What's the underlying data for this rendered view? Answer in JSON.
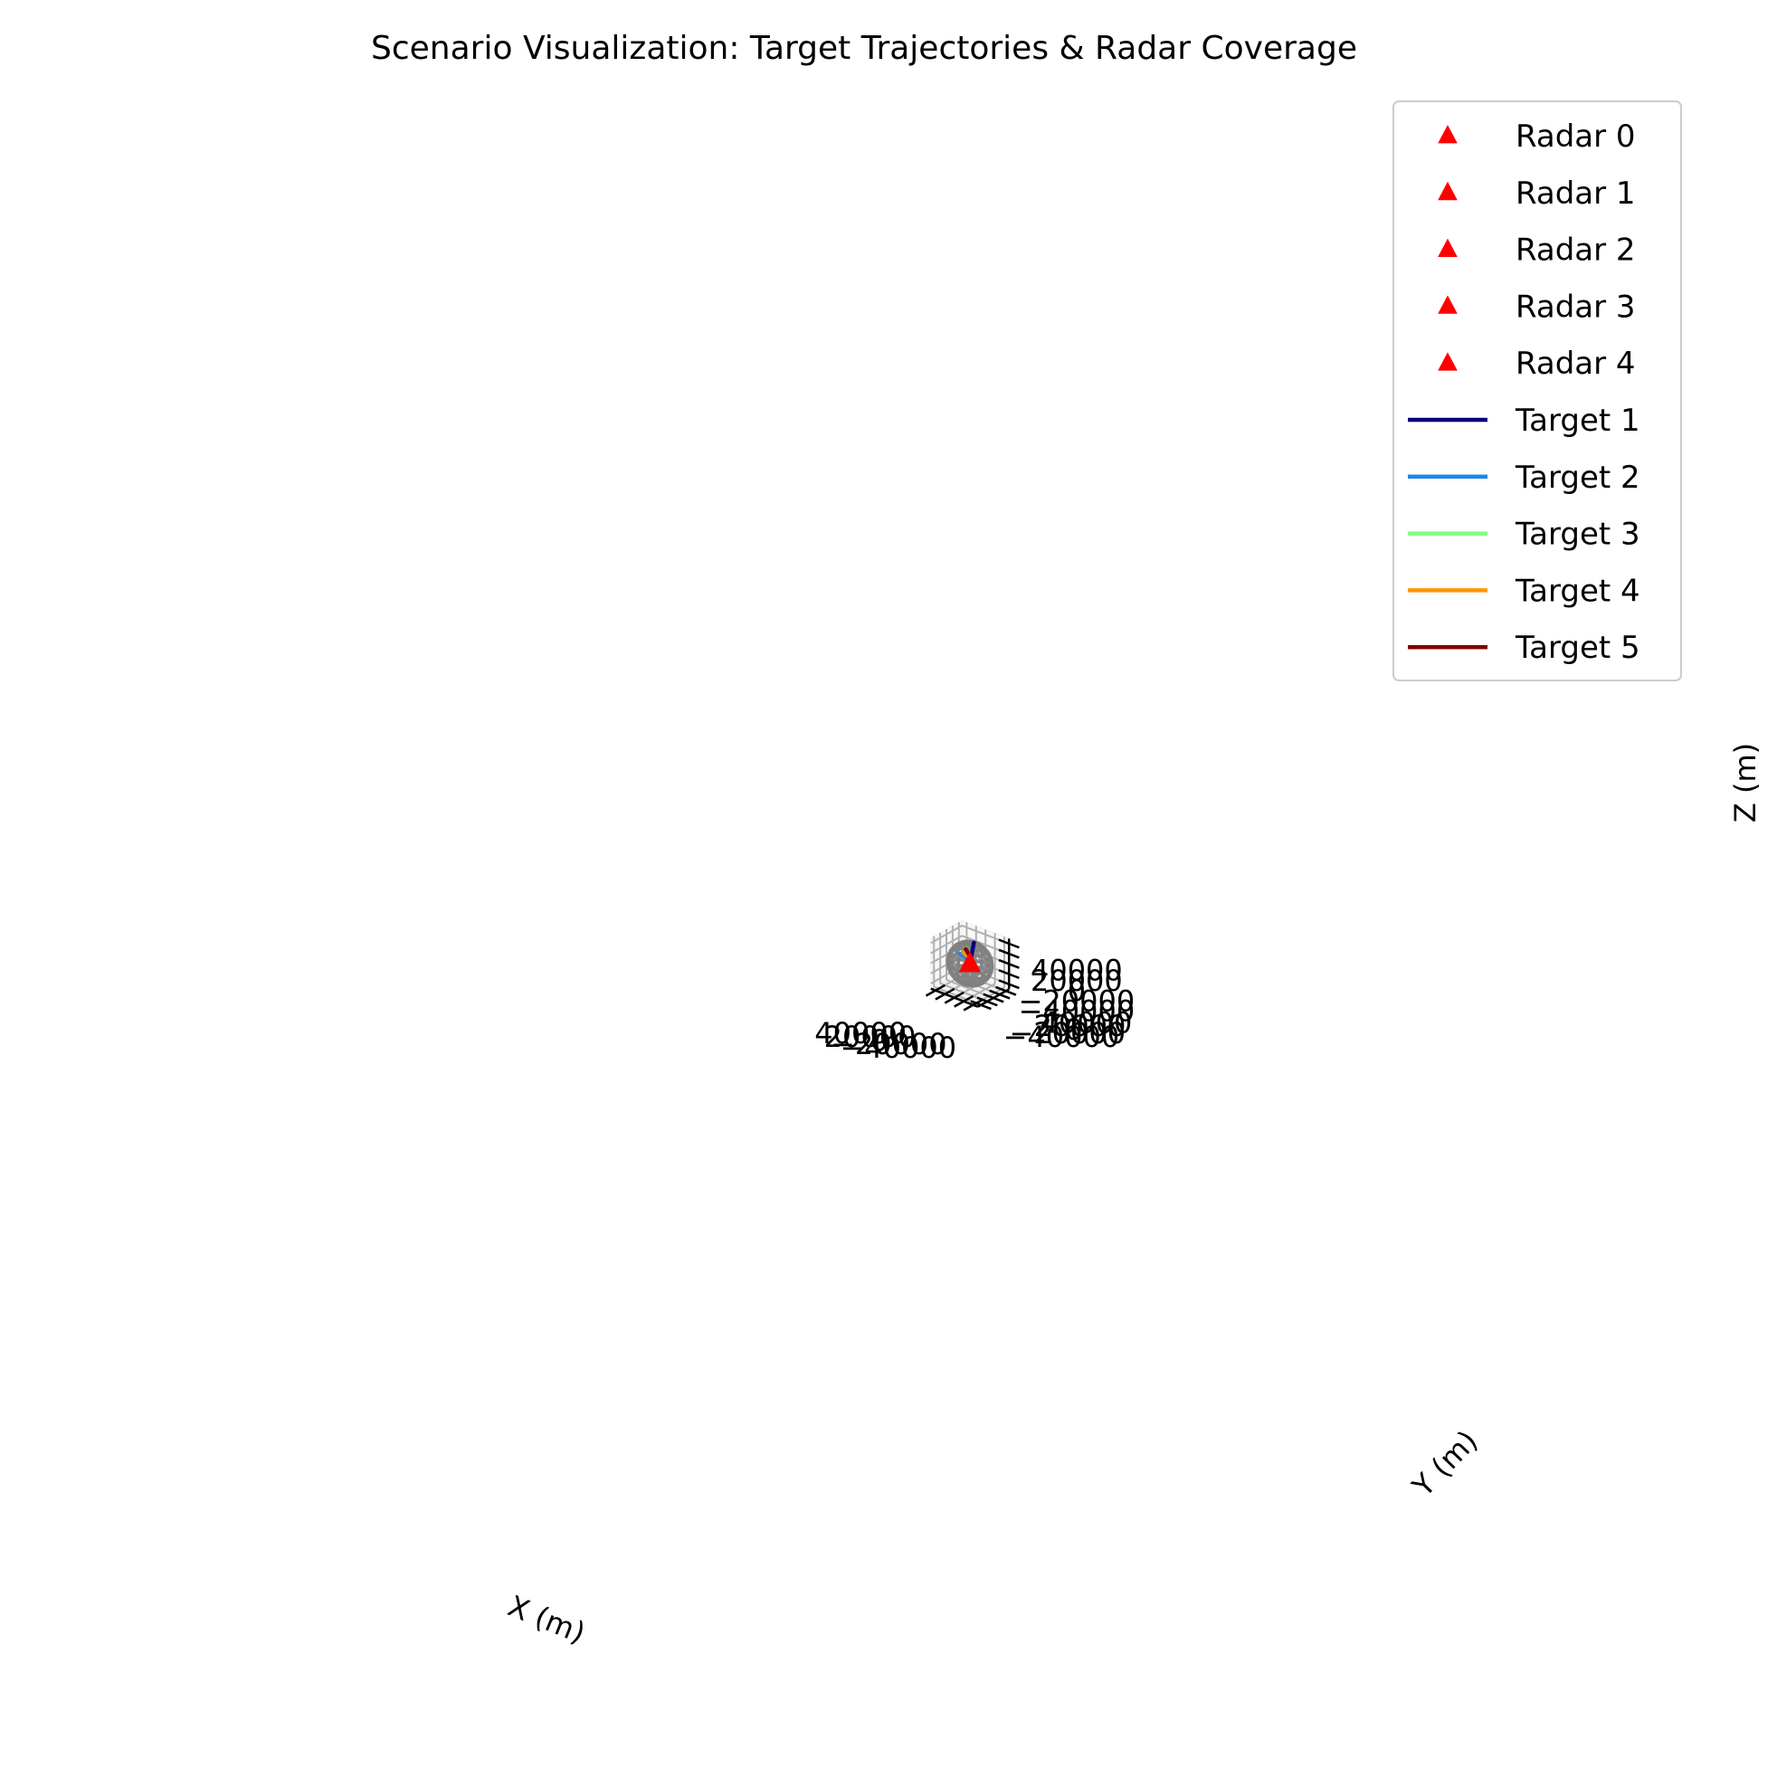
{
  "chart_data": {
    "type": "line",
    "projection": "3d",
    "title": "Scenario Visualization: Target Trajectories & Radar Coverage",
    "xlabel": "X (m)",
    "ylabel": "Y (m)",
    "zlabel": "Z (m)",
    "xlim": [
      -50000,
      50000
    ],
    "ylim": [
      -50000,
      50000
    ],
    "zlim": [
      -50000,
      50000
    ],
    "xticks": [
      "−40000",
      "−20000",
      "0",
      "20000",
      "40000"
    ],
    "xtick_values": [
      -40000,
      -20000,
      0,
      20000,
      40000
    ],
    "yticks": [
      "−40000",
      "−20000",
      "0",
      "20000",
      "40000"
    ],
    "ytick_values": [
      -40000,
      -20000,
      0,
      20000,
      40000
    ],
    "zticks": [
      "−40000",
      "−20000",
      "0",
      "20000",
      "40000"
    ],
    "ztick_values": [
      -40000,
      -20000,
      0,
      20000,
      40000
    ],
    "grid": true,
    "legend_position": "top-right",
    "radars": [
      {
        "name": "Radar 0",
        "x": 0,
        "y": 0,
        "z": 0,
        "color": "#ff0000",
        "coverage_radius": 40000
      },
      {
        "name": "Radar 1",
        "x": 500,
        "y": 0,
        "z": 0,
        "color": "#ff0000",
        "coverage_radius": 40000
      },
      {
        "name": "Radar 2",
        "x": -500,
        "y": 0,
        "z": 0,
        "color": "#ff0000",
        "coverage_radius": 40000
      },
      {
        "name": "Radar 3",
        "x": 0,
        "y": 500,
        "z": 0,
        "color": "#ff0000",
        "coverage_radius": 40000
      },
      {
        "name": "Radar 4",
        "x": 0,
        "y": -500,
        "z": 0,
        "color": "#ff0000",
        "coverage_radius": 40000
      }
    ],
    "coverage_color": "#808080",
    "series": [
      {
        "name": "Target 1",
        "color": "#000080",
        "points": [
          [
            0,
            0,
            0
          ],
          [
            8000,
            25000,
            30000
          ]
        ]
      },
      {
        "name": "Target 2",
        "color": "#1e88e5",
        "points": [
          [
            12000,
            12000,
            0
          ],
          [
            35000,
            20000,
            0
          ]
        ]
      },
      {
        "name": "Target 3",
        "color": "#7fff7f",
        "points": [
          [
            13000,
            16000,
            8000
          ],
          [
            30000,
            32000,
            8000
          ]
        ]
      },
      {
        "name": "Target 4",
        "color": "#ff9800",
        "points": [
          [
            12000,
            14000,
            4000
          ],
          [
            33000,
            29000,
            0
          ]
        ]
      },
      {
        "name": "Target 5",
        "color": "#800000",
        "points": [
          [
            13000,
            16000,
            8000
          ],
          [
            30000,
            32000,
            7000
          ]
        ]
      }
    ]
  }
}
